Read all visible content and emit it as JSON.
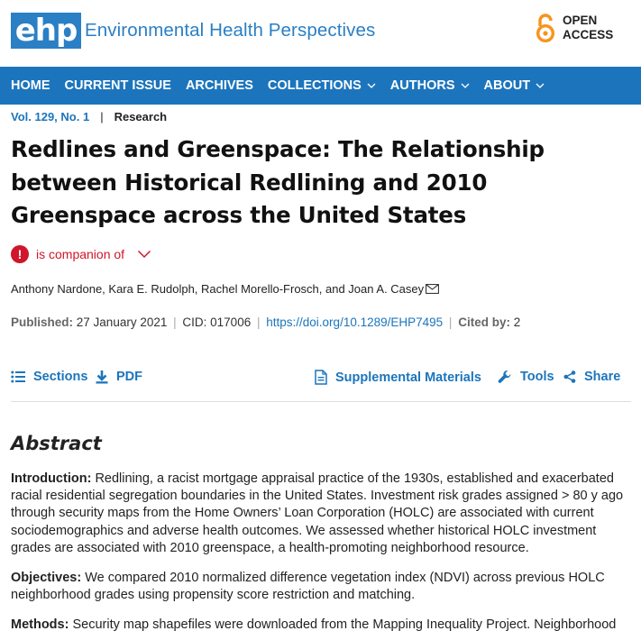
{
  "header": {
    "logo_mark": "ehp",
    "logo_text": "Environmental Health Perspectives",
    "open_access_line1": "OPEN",
    "open_access_line2": "ACCESS"
  },
  "nav": {
    "items": [
      {
        "label": "HOME",
        "dropdown": false
      },
      {
        "label": "CURRENT ISSUE",
        "dropdown": false
      },
      {
        "label": "ARCHIVES",
        "dropdown": false
      },
      {
        "label": "COLLECTIONS",
        "dropdown": true
      },
      {
        "label": "AUTHORS",
        "dropdown": true
      },
      {
        "label": "ABOUT",
        "dropdown": true
      }
    ]
  },
  "article": {
    "volume": "Vol. 129, No. 1",
    "separator": "|",
    "type": "Research",
    "title": "Redlines and Greenspace: The Relationship between Historical Redlining and 2010 Greenspace across the United States",
    "companion_label": "is companion of",
    "authors": "Anthony Nardone, Kara E. Rudolph, Rachel Morello-Frosch, and Joan A. Casey",
    "published_label": "Published:",
    "published_date": "27 January 2021",
    "cid": "CID: 017006",
    "doi": "https://doi.org/10.1289/EHP7495",
    "cited_label": "Cited by:",
    "cited_count": "2"
  },
  "tools": {
    "sections": "Sections",
    "pdf": "PDF",
    "supplemental": "Supplemental Materials",
    "tools": "Tools",
    "share": "Share"
  },
  "abstract": {
    "heading": "Abstract",
    "intro_label": "Introduction:",
    "intro_text": "Redlining, a racist mortgage appraisal practice of the 1930s, established and exacerbated racial residential segregation boundaries in the United States. Investment risk grades assigned > 80 y ago through security maps from the Home Owners’ Loan Corporation (HOLC) are associated with current sociodemographics and adverse health outcomes. We assessed whether historical HOLC investment grades are associated with 2010 greenspace, a health-promoting neighborhood resource.",
    "objectives_label": "Objectives:",
    "objectives_text": "We compared 2010 normalized difference vegetation index (NDVI) across previous HOLC neighborhood grades using propensity score restriction and matching.",
    "methods_label": "Methods:",
    "methods_text": "Security map shapefiles were downloaded from the Mapping Inequality Project. Neighborhood"
  },
  "colors": {
    "brand_blue": "#1c75bc",
    "alert_red": "#d0162a",
    "oa_orange": "#f7941d"
  }
}
